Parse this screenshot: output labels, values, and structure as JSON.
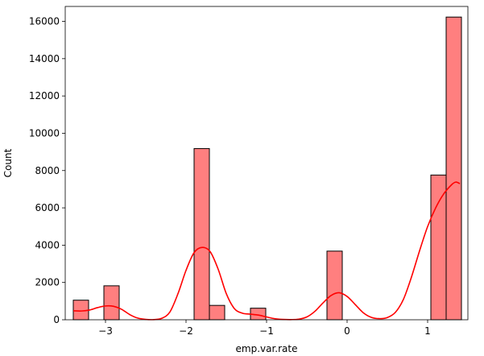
{
  "chart_data": {
    "type": "histogram",
    "title": "",
    "xlabel": "emp.var.rate",
    "ylabel": "Count",
    "xlim": [
      -3.5,
      1.5
    ],
    "ylim": [
      0,
      16800
    ],
    "xticks": [
      -3,
      -2,
      -1,
      0,
      1
    ],
    "xtick_labels": [
      "−3",
      "−2",
      "−1",
      "0",
      "1"
    ],
    "yticks": [
      0,
      2000,
      4000,
      6000,
      8000,
      10000,
      12000,
      14000,
      16000
    ],
    "ytick_labels": [
      "0",
      "2000",
      "4000",
      "6000",
      "8000",
      "10000",
      "12000",
      "14000",
      "16000"
    ],
    "bar_color": "#ff7f7f",
    "bar_edge_color": "#000000",
    "kde_color": "#ff0000",
    "bins": [
      {
        "x0": -3.4,
        "x1": -3.21,
        "count": 1050
      },
      {
        "x0": -3.02,
        "x1": -2.83,
        "count": 1820
      },
      {
        "x0": -1.9,
        "x1": -1.71,
        "count": 9180
      },
      {
        "x0": -1.71,
        "x1": -1.52,
        "count": 770
      },
      {
        "x0": -1.2,
        "x1": -1.01,
        "count": 620
      },
      {
        "x0": -0.25,
        "x1": -0.06,
        "count": 3680
      },
      {
        "x0": 1.04,
        "x1": 1.23,
        "count": 7760
      },
      {
        "x0": 1.23,
        "x1": 1.42,
        "count": 16230
      }
    ],
    "kde": [
      [
        -3.4,
        480
      ],
      [
        -3.3,
        470
      ],
      [
        -3.2,
        520
      ],
      [
        -3.1,
        650
      ],
      [
        -3.0,
        740
      ],
      [
        -2.9,
        720
      ],
      [
        -2.8,
        560
      ],
      [
        -2.7,
        280
      ],
      [
        -2.6,
        90
      ],
      [
        -2.5,
        20
      ],
      [
        -2.4,
        10
      ],
      [
        -2.3,
        80
      ],
      [
        -2.2,
        420
      ],
      [
        -2.1,
        1400
      ],
      [
        -2.0,
        2650
      ],
      [
        -1.9,
        3600
      ],
      [
        -1.8,
        3880
      ],
      [
        -1.7,
        3650
      ],
      [
        -1.6,
        2700
      ],
      [
        -1.5,
        1400
      ],
      [
        -1.4,
        600
      ],
      [
        -1.3,
        350
      ],
      [
        -1.2,
        300
      ],
      [
        -1.1,
        250
      ],
      [
        -1.0,
        150
      ],
      [
        -0.9,
        60
      ],
      [
        -0.8,
        20
      ],
      [
        -0.7,
        10
      ],
      [
        -0.6,
        30
      ],
      [
        -0.5,
        150
      ],
      [
        -0.4,
        450
      ],
      [
        -0.3,
        900
      ],
      [
        -0.2,
        1300
      ],
      [
        -0.1,
        1450
      ],
      [
        0.0,
        1250
      ],
      [
        0.1,
        820
      ],
      [
        0.2,
        380
      ],
      [
        0.3,
        130
      ],
      [
        0.4,
        60
      ],
      [
        0.5,
        120
      ],
      [
        0.6,
        400
      ],
      [
        0.7,
        1100
      ],
      [
        0.8,
        2300
      ],
      [
        0.9,
        3700
      ],
      [
        1.0,
        5000
      ],
      [
        1.1,
        6000
      ],
      [
        1.2,
        6750
      ],
      [
        1.3,
        7250
      ],
      [
        1.35,
        7380
      ],
      [
        1.4,
        7300
      ]
    ]
  }
}
